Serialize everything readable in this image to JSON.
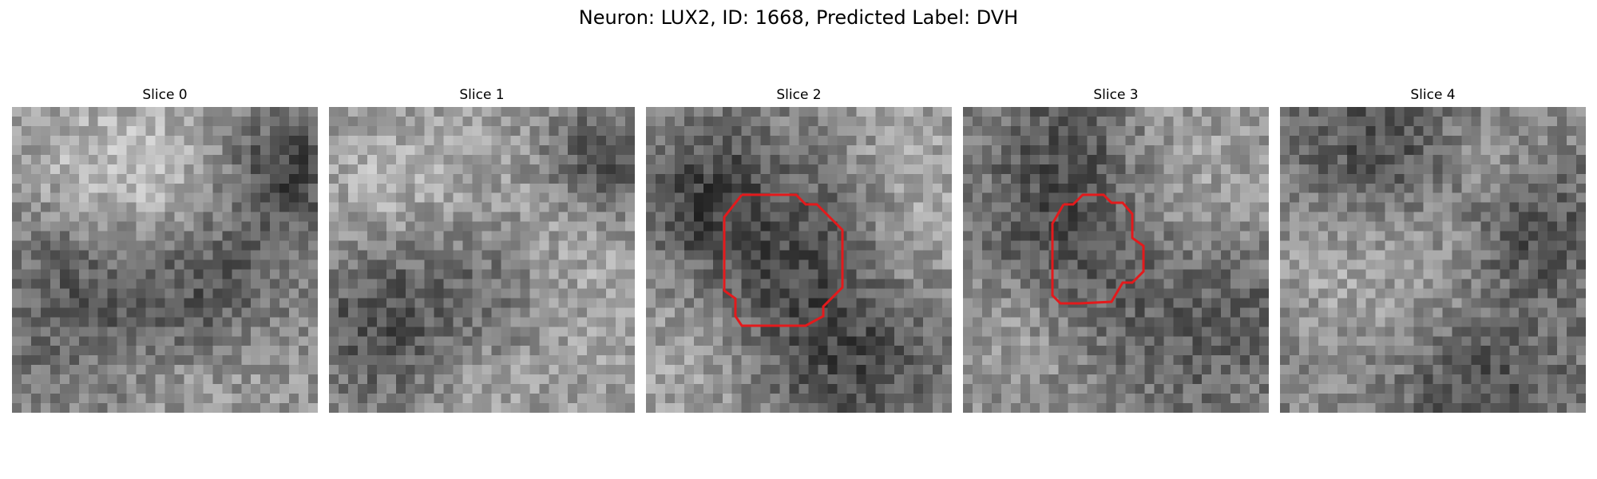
{
  "figure": {
    "title": "Neuron: LUX2, ID: 1668, Predicted Label: DVH",
    "colormap": "gray",
    "outline_color": "#e31a1c"
  },
  "panels": [
    {
      "title": "Slice 0",
      "has_outline": false
    },
    {
      "title": "Slice 1",
      "has_outline": false
    },
    {
      "title": "Slice 2",
      "has_outline": true
    },
    {
      "title": "Slice 3",
      "has_outline": true
    },
    {
      "title": "Slice 4",
      "has_outline": false
    }
  ]
}
